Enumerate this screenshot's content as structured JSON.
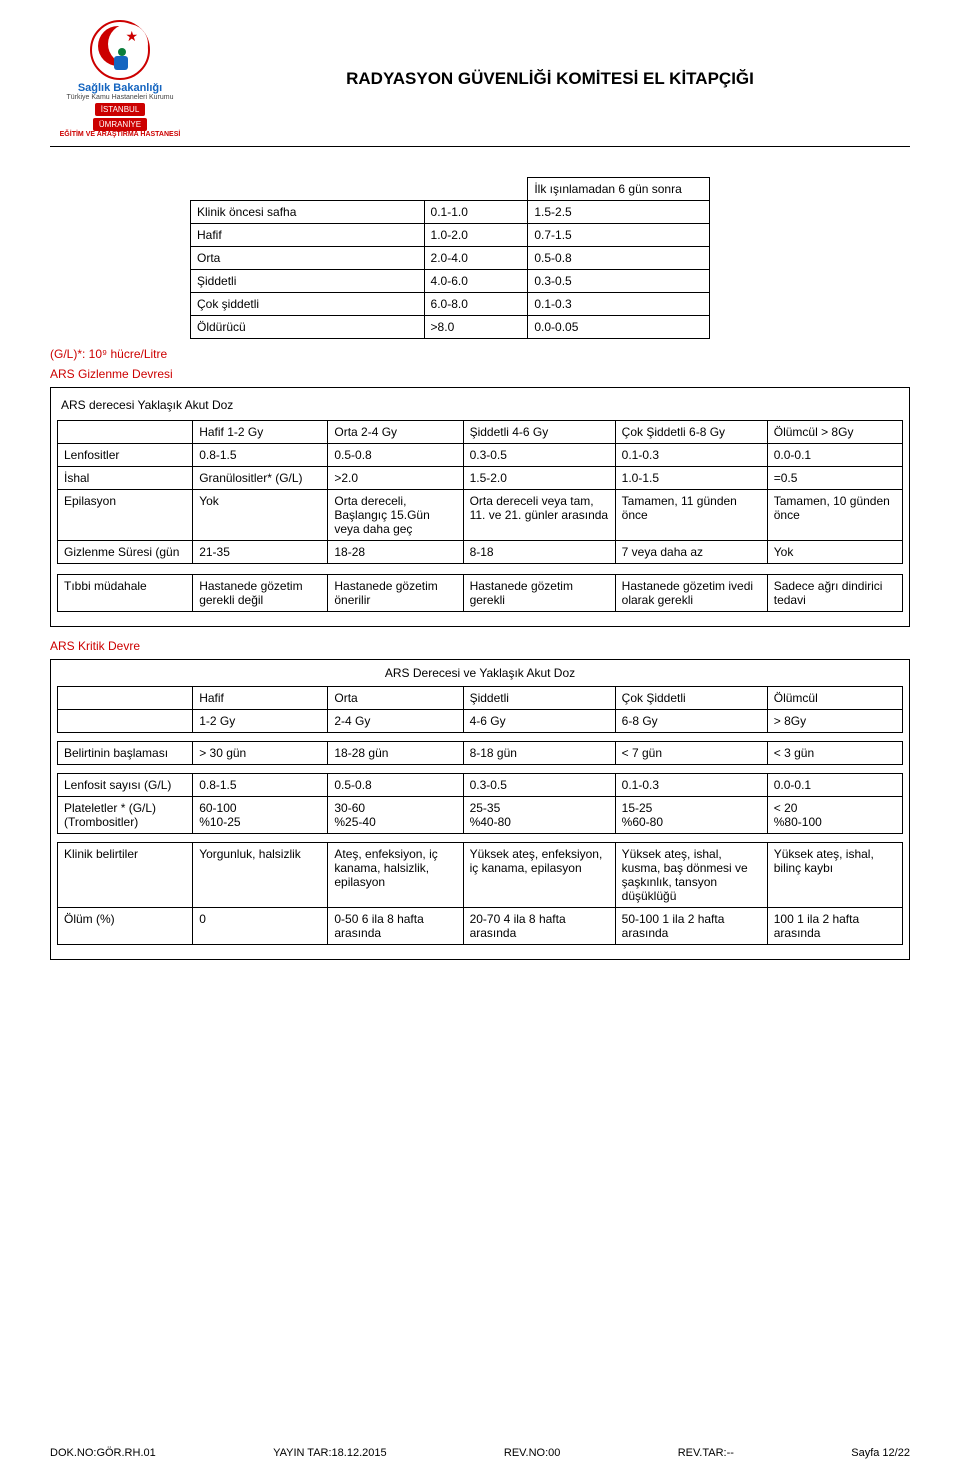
{
  "header": {
    "logo_line1": "Sağlık Bakanlığı",
    "logo_line2": "Türkiye Kamu Hastaneleri Kurumu",
    "logo_bar1": "İSTANBUL",
    "logo_bar2": "ÜMRANİYE",
    "logo_bar3": "EĞİTİM VE ARAŞTIRMA HASTANESİ",
    "title": "RADYASYON GÜVENLİĞİ KOMİTESİ EL KİTAPÇIĞI"
  },
  "table1": {
    "caption_right": "İlk ışınlamadan 6 gün sonra",
    "rows": [
      [
        "Klinik öncesi safha",
        "0.1-1.0",
        "1.5-2.5"
      ],
      [
        "Hafif",
        "1.0-2.0",
        "0.7-1.5"
      ],
      [
        "Orta",
        "2.0-4.0",
        "0.5-0.8"
      ],
      [
        "Şiddetli",
        "4.0-6.0",
        "0.3-0.5"
      ],
      [
        "Çok şiddetli",
        "6.0-8.0",
        "0.1-0.3"
      ],
      [
        "Öldürücü",
        ">8.0",
        "0.0-0.05"
      ]
    ]
  },
  "note1": "(G/L)*: 10⁹ hücre/Litre",
  "section2_title": "ARS Gizlenme Devresi",
  "table2_caption": "ARS derecesi Yaklaşık Akut Doz",
  "table2": {
    "headers": [
      "",
      "Hafif 1-2 Gy",
      "Orta 2-4 Gy",
      "Şiddetli 4-6 Gy",
      "Çok Şiddetli 6-8 Gy",
      "Ölümcül > 8Gy"
    ],
    "rows": [
      [
        "Lenfositler",
        "0.8-1.5",
        "0.5-0.8",
        "0.3-0.5",
        "0.1-0.3",
        "0.0-0.1"
      ],
      [
        "İshal",
        "Granülositler* (G/L)",
        ">2.0",
        "1.5-2.0",
        "1.0-1.5",
        "=0.5"
      ],
      [
        "Epilasyon",
        "Yok",
        "Orta dereceli, Başlangıç 15.Gün veya daha geç",
        "Orta dereceli veya tam, 11. ve 21. günler arasında",
        "Tamamen, 11 günden önce",
        "Tamamen, 10 günden önce"
      ],
      [
        "Gizlenme Süresi (gün",
        "21-35",
        "18-28",
        "8-18",
        "7 veya daha az",
        "Yok"
      ]
    ]
  },
  "table2b": {
    "row": [
      "Tıbbi müdahale",
      "Hastanede gözetim gerekli değil",
      "Hastanede gözetim önerilir",
      "Hastanede gözetim gerekli",
      "Hastanede gözetim ivedi olarak gerekli",
      "Sadece ağrı dindirici tedavi"
    ]
  },
  "section3_title": "ARS Kritik Devre",
  "table3_caption": "ARS Derecesi ve Yaklaşık Akut Doz",
  "table3a": {
    "headers": [
      "",
      "Hafif",
      "Orta",
      "Şiddetli",
      "Çok Şiddetli",
      "Ölümcül"
    ],
    "sub": [
      "",
      "1-2 Gy",
      "2-4 Gy",
      "4-6 Gy",
      "6-8 Gy",
      "> 8Gy"
    ]
  },
  "table3b": {
    "row": [
      "Belirtinin başlaması",
      "> 30 gün",
      "18-28 gün",
      "8-18 gün",
      "< 7 gün",
      "< 3 gün"
    ]
  },
  "table3c": {
    "rows": [
      [
        "Lenfosit sayısı (G/L)",
        "0.8-1.5",
        "0.5-0.8",
        "0.3-0.5",
        "0.1-0.3",
        "0.0-0.1"
      ],
      [
        "Plateletler * (G/L)\n (Trombositler)",
        "60-100\n%10-25",
        "30-60\n%25-40",
        "25-35\n %40-80",
        "15-25\n%60-80",
        "< 20\n%80-100"
      ]
    ]
  },
  "table3d": {
    "rows": [
      [
        "Klinik belirtiler",
        "Yorgunluk, halsizlik",
        "Ateş, enfeksiyon, iç kanama, halsizlik, epilasyon",
        "Yüksek ateş, enfeksiyon, iç kanama, epilasyon",
        "Yüksek ateş, ishal, kusma, baş dönmesi ve şaşkınlık, tansyon düşüklüğü",
        "Yüksek ateş, ishal, bilinç kaybı"
      ],
      [
        "Ölüm (%)",
        "0",
        "0-50 6 ila 8 hafta arasında",
        "20-70 4 ila 8 hafta arasında",
        "50-100 1 ila 2 hafta arasında",
        "100 1 ila 2 hafta arasında"
      ]
    ]
  },
  "footer": {
    "dok": "DOK.NO:GÖR.RH.01",
    "yayin": "YAYIN TAR:18.12.2015",
    "revno": "REV.NO:00",
    "revtar": "REV.TAR:--",
    "sayfa": "Sayfa 12/22"
  },
  "colors": {
    "red": "#c00000",
    "border": "#000000"
  },
  "col_widths_6": [
    "16%",
    "16%",
    "16%",
    "18%",
    "18%",
    "16%"
  ]
}
